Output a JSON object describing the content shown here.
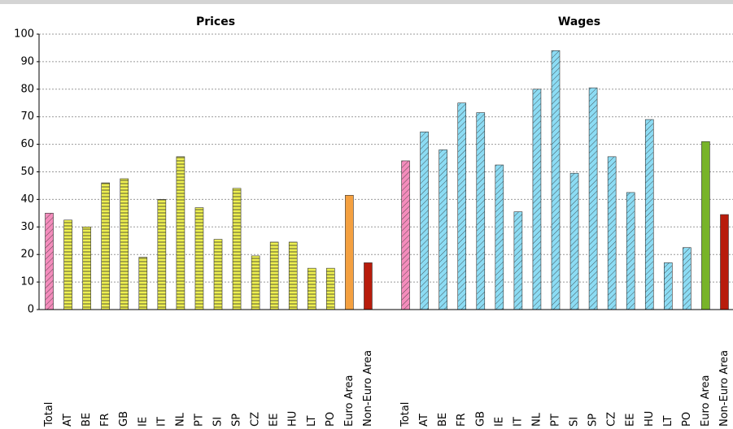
{
  "chart_data": [
    {
      "type": "bar",
      "title": "Prices",
      "categories": [
        "Total",
        "AT",
        "BE",
        "FR",
        "GB",
        "IE",
        "IT",
        "NL",
        "PT",
        "SI",
        "SP",
        "CZ",
        "EE",
        "HU",
        "LT",
        "PO",
        "Euro Area",
        "Non-Euro Area"
      ],
      "values": [
        35,
        32.5,
        30,
        46,
        47.5,
        19,
        40,
        55.5,
        37,
        25.5,
        44,
        19.5,
        24.5,
        24.5,
        15,
        15,
        41.5,
        17
      ],
      "colors": [
        "#f48cbc",
        "#eef050",
        "#eef050",
        "#eef050",
        "#eef050",
        "#eef050",
        "#eef050",
        "#eef050",
        "#eef050",
        "#eef050",
        "#eef050",
        "#eef050",
        "#eef050",
        "#eef050",
        "#eef050",
        "#eef050",
        "#f4a040",
        "#b81c0c"
      ],
      "hatch": "horizontal",
      "ylim": [
        0,
        100
      ],
      "yticks": [
        0,
        10,
        20,
        30,
        40,
        50,
        60,
        70,
        80,
        90,
        100
      ],
      "grid": true
    },
    {
      "type": "bar",
      "title": "Wages",
      "categories": [
        "Total",
        "AT",
        "BE",
        "FR",
        "GB",
        "IE",
        "IT",
        "NL",
        "PT",
        "SI",
        "SP",
        "CZ",
        "EE",
        "HU",
        "LT",
        "PO",
        "Euro Area",
        "Non-Euro Area"
      ],
      "values": [
        54,
        64.5,
        58,
        75,
        71.5,
        52.5,
        35.5,
        80,
        94,
        49.5,
        80.5,
        55.5,
        42.5,
        69,
        17,
        22.5,
        61,
        34.5
      ],
      "colors": [
        "#f48cbc",
        "#8cdcf4",
        "#8cdcf4",
        "#8cdcf4",
        "#8cdcf4",
        "#8cdcf4",
        "#8cdcf4",
        "#8cdcf4",
        "#8cdcf4",
        "#8cdcf4",
        "#8cdcf4",
        "#8cdcf4",
        "#8cdcf4",
        "#8cdcf4",
        "#8cdcf4",
        "#8cdcf4",
        "#78b428",
        "#b81c0c"
      ],
      "hatch": "diagonal",
      "ylim": [
        0,
        100
      ]
    }
  ]
}
